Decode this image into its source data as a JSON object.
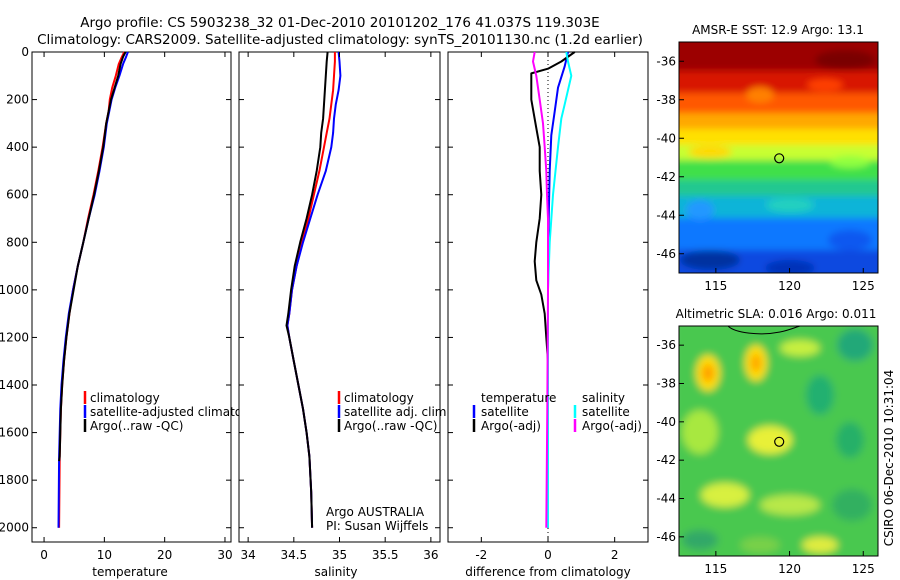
{
  "header": {
    "line1": "Argo profile: CS 5903238_32 01-Dec-2010 20101202_176 41.037S 119.303E",
    "line2": "Climatology: CARS2009. Satellite-adjusted climatology: synTS_20101130.nc (1.2d earlier)"
  },
  "side_text": "CSIRO 06-Dec-2010 10:31:04",
  "chart_data": [
    {
      "type": "line",
      "id": "temperature",
      "xlabel": "temperature",
      "ylabel": "",
      "xlim": [
        -2,
        31
      ],
      "ylim": [
        2060,
        0
      ],
      "xticks": [
        0,
        10,
        20,
        30
      ],
      "yticks": [
        0,
        200,
        400,
        600,
        800,
        1000,
        1200,
        1400,
        1600,
        1800,
        2000
      ],
      "series": [
        {
          "name": "climatology",
          "color": "#ff0000",
          "x": [
            13.3,
            12.9,
            12.4,
            11.9,
            11.3,
            10.9,
            10.7,
            10.3,
            9.7,
            9.0,
            8.2,
            7.3,
            6.5,
            5.6,
            4.8,
            4.2,
            3.7,
            3.3,
            3.0,
            2.8,
            2.6,
            2.5
          ],
          "y": [
            0,
            20,
            50,
            100,
            150,
            200,
            250,
            300,
            400,
            500,
            600,
            700,
            800,
            900,
            1000,
            1100,
            1200,
            1300,
            1400,
            1500,
            1700,
            2000
          ]
        },
        {
          "name": "satellite-adjusted climatology",
          "color": "#0000ff",
          "x": [
            13.9,
            13.6,
            13.1,
            12.5,
            11.8,
            11.2,
            10.8,
            10.4,
            9.9,
            9.2,
            8.4,
            7.4,
            6.5,
            5.6,
            4.8,
            4.1,
            3.6,
            3.2,
            2.9,
            2.7,
            2.5,
            2.4
          ],
          "y": [
            0,
            20,
            50,
            100,
            150,
            200,
            250,
            300,
            400,
            500,
            600,
            700,
            800,
            900,
            1000,
            1100,
            1200,
            1300,
            1400,
            1500,
            1700,
            2000
          ]
        },
        {
          "name": "Argo(..raw -QC)",
          "color": "#000000",
          "x": [
            13.5,
            13.1,
            12.7,
            12.3,
            11.7,
            11.1,
            10.7,
            10.3,
            9.8,
            9.1,
            8.3,
            7.4,
            6.5,
            5.6,
            4.9,
            4.2,
            3.7,
            3.3,
            3.0,
            2.8,
            2.6,
            2.5
          ],
          "y": [
            0,
            20,
            50,
            100,
            150,
            200,
            250,
            300,
            400,
            500,
            600,
            700,
            800,
            900,
            1000,
            1100,
            1200,
            1300,
            1400,
            1500,
            1700,
            1720
          ]
        }
      ],
      "legend": [
        "climatology",
        "satellite-adjusted climatolog",
        "Argo(..raw -QC)"
      ]
    },
    {
      "type": "line",
      "id": "salinity",
      "xlabel": "salinity",
      "ylabel": "",
      "xlim": [
        33.9,
        36.1
      ],
      "ylim": [
        2060,
        0
      ],
      "xticks": [
        34,
        34.5,
        35,
        35.5,
        36
      ],
      "series": [
        {
          "name": "climatology",
          "color": "#ff0000",
          "x": [
            34.95,
            34.95,
            34.94,
            34.93,
            34.91,
            34.89,
            34.86,
            34.83,
            34.78,
            34.72,
            34.66,
            34.59,
            34.53,
            34.48,
            34.45,
            34.43,
            34.45,
            34.5,
            34.55,
            34.6,
            34.64,
            34.67,
            34.69,
            34.7
          ],
          "y": [
            0,
            40,
            100,
            160,
            220,
            280,
            340,
            400,
            500,
            600,
            700,
            800,
            900,
            1000,
            1100,
            1150,
            1200,
            1300,
            1400,
            1500,
            1600,
            1700,
            1850,
            2000
          ]
        },
        {
          "name": "satellite adj. clim.",
          "color": "#0000ff",
          "x": [
            34.99,
            35.0,
            35.01,
            34.99,
            34.96,
            34.94,
            34.93,
            34.91,
            34.85,
            34.76,
            34.68,
            34.6,
            34.53,
            34.48,
            34.45,
            34.43,
            34.45,
            34.5,
            34.55,
            34.6,
            34.64,
            34.67,
            34.69,
            34.7
          ],
          "y": [
            0,
            40,
            100,
            160,
            220,
            280,
            340,
            400,
            500,
            600,
            700,
            800,
            900,
            1000,
            1100,
            1150,
            1200,
            1300,
            1400,
            1500,
            1600,
            1700,
            1850,
            2000
          ]
        },
        {
          "name": "Argo(..raw -QC)",
          "color": "#000000",
          "x": [
            34.87,
            34.86,
            34.85,
            34.84,
            34.83,
            34.82,
            34.8,
            34.79,
            34.75,
            34.7,
            34.64,
            34.57,
            34.51,
            34.47,
            34.44,
            34.42,
            34.45,
            34.5,
            34.55,
            34.6,
            34.64,
            34.67,
            34.69,
            34.7
          ],
          "y": [
            0,
            40,
            100,
            160,
            220,
            280,
            340,
            400,
            500,
            600,
            700,
            800,
            900,
            1000,
            1100,
            1150,
            1200,
            1300,
            1400,
            1500,
            1600,
            1700,
            1850,
            2000
          ]
        }
      ],
      "legend": [
        "climatology",
        "satellite adj. clim.",
        "Argo(..raw -QC)"
      ],
      "annotation": [
        "Argo AUSTRALIA",
        "PI: Susan Wijffels"
      ]
    },
    {
      "type": "line",
      "id": "difference",
      "xlabel": "difference from climatology",
      "ylabel": "",
      "xlim": [
        -3,
        3
      ],
      "ylim": [
        2060,
        0
      ],
      "xticks": [
        -2,
        0,
        2
      ],
      "series": [
        {
          "name": "temperature satellite",
          "color": "#0000ff",
          "x": [
            0.6,
            0.5,
            0.3,
            0.2,
            0.1,
            0.05,
            0.02,
            0.0,
            0.0,
            0.0
          ],
          "y": [
            0,
            60,
            150,
            250,
            350,
            500,
            700,
            1000,
            1500,
            2000
          ]
        },
        {
          "name": "temperature Argo(-adj)",
          "color": "#000000",
          "x": [
            0.8,
            0.4,
            0.0,
            -0.5,
            -0.5,
            -0.35,
            -0.25,
            -0.25,
            -0.2,
            -0.25,
            -0.35,
            -0.4,
            -0.35,
            -0.2,
            -0.1,
            -0.05,
            0.0
          ],
          "y": [
            0,
            40,
            70,
            90,
            200,
            320,
            400,
            500,
            600,
            700,
            800,
            880,
            960,
            1020,
            1100,
            1200,
            1300
          ]
        },
        {
          "name": "salinity satellite",
          "color": "#00ffff",
          "x": [
            0.55,
            0.6,
            0.7,
            0.6,
            0.5,
            0.4,
            0.3,
            0.15,
            0.05,
            0.0,
            0.0,
            0.0
          ],
          "y": [
            0,
            40,
            100,
            160,
            220,
            280,
            400,
            600,
            800,
            1000,
            1500,
            2000
          ]
        },
        {
          "name": "salinity Argo(-adj)",
          "color": "#ff00ff",
          "x": [
            -0.4,
            -0.45,
            -0.35,
            -0.25,
            -0.15,
            -0.1,
            -0.05,
            -0.03,
            0.0,
            0.0,
            -0.02,
            -0.05
          ],
          "y": [
            0,
            40,
            100,
            200,
            300,
            400,
            500,
            600,
            700,
            1000,
            1500,
            2000
          ]
        }
      ],
      "legend_left_title": "temperature",
      "legend_right_title": "salinity",
      "legend": [
        "satellite",
        "Argo(-adj)",
        "satellite",
        "Argo(-adj)"
      ]
    },
    {
      "type": "heatmap",
      "id": "sst",
      "title": "AMSR-E SST: 12.9 Argo: 13.1",
      "xlim": [
        112.5,
        126
      ],
      "ylim": [
        -47,
        -35
      ],
      "xticks": [
        115,
        120,
        125
      ],
      "yticks": [
        -36,
        -38,
        -40,
        -42,
        -44,
        -46
      ],
      "marker": {
        "x": 119.3,
        "y": -41.04
      }
    },
    {
      "type": "heatmap",
      "id": "sla",
      "title": "Altimetric SLA: 0.016 Argo: 0.011",
      "xlim": [
        112.5,
        126
      ],
      "ylim": [
        -47,
        -35
      ],
      "xticks": [
        115,
        120,
        125
      ],
      "yticks": [
        -36,
        -38,
        -40,
        -42,
        -44,
        -46
      ],
      "marker": {
        "x": 119.3,
        "y": -41.04
      }
    }
  ]
}
